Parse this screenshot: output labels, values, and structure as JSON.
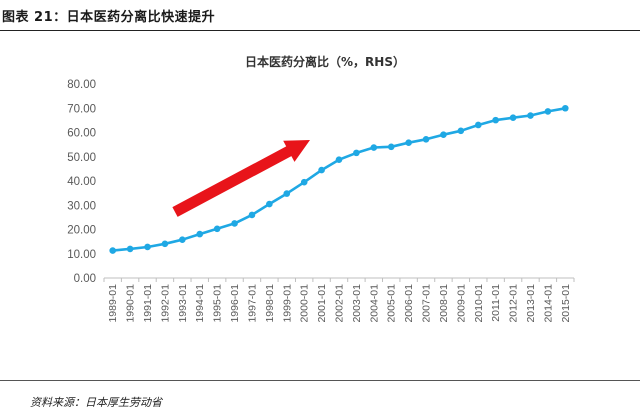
{
  "header": {
    "figure_label": "图表 21：日本医药分离比快速提升"
  },
  "footer": {
    "source_text": "资料来源：日本厚生劳动省"
  },
  "colors": {
    "line": "#1fa8e4",
    "arrow": "#e8141a",
    "axis": "#bfbfbf",
    "text": "#595959"
  },
  "chart_data": {
    "type": "line",
    "title": "日本医药分离比（%，RHS）",
    "xlabel": "",
    "ylabel": "",
    "ylim": [
      0,
      80
    ],
    "yticks": [
      "0.00",
      "10.00",
      "20.00",
      "30.00",
      "40.00",
      "50.00",
      "60.00",
      "70.00",
      "80.00"
    ],
    "categories": [
      "1989-01",
      "1990-01",
      "1991-01",
      "1992-01",
      "1993-01",
      "1994-01",
      "1995-01",
      "1996-01",
      "1997-01",
      "1998-01",
      "1999-01",
      "2000-01",
      "2001-01",
      "2002-01",
      "2003-01",
      "2004-01",
      "2005-01",
      "2006-01",
      "2007-01",
      "2008-01",
      "2009-01",
      "2010-01",
      "2011-01",
      "2012-01",
      "2013-01",
      "2014-01",
      "2015-01"
    ],
    "series": [
      {
        "values": [
          11.3,
          12.0,
          12.8,
          14.1,
          15.8,
          18.1,
          20.3,
          22.5,
          26.0,
          30.5,
          34.8,
          39.5,
          44.5,
          48.8,
          51.6,
          53.8,
          54.1,
          55.8,
          57.2,
          59.1,
          60.7,
          63.1,
          65.1,
          66.1,
          67.0,
          68.7,
          70.0
        ]
      }
    ],
    "annotation": "red upward arrow",
    "grid": false,
    "legend": "none"
  }
}
